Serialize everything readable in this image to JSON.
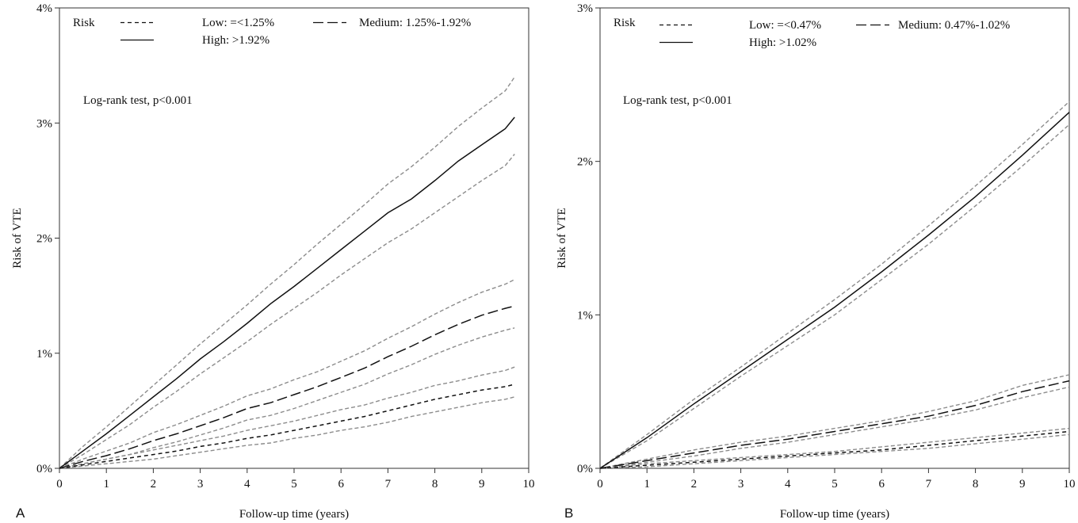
{
  "chart_data": [
    {
      "type": "line",
      "panel_label": "A",
      "xlabel": "Follow-up time (years)",
      "ylabel": "Risk of VTE",
      "xlim": [
        0,
        10
      ],
      "ylim": [
        0,
        4
      ],
      "x_ticks": [
        0,
        1,
        2,
        3,
        4,
        5,
        6,
        7,
        8,
        9,
        10
      ],
      "y_ticks": [
        {
          "value": 0,
          "label": "0%"
        },
        {
          "value": 1,
          "label": "1%"
        },
        {
          "value": 2,
          "label": "2%"
        },
        {
          "value": 3,
          "label": "3%"
        },
        {
          "value": 4,
          "label": "4%"
        }
      ],
      "grid": false,
      "annotation": "Log-rank test, p<0.001",
      "legend": {
        "title": "Risk",
        "placement": "top",
        "entries": [
          {
            "label": "Low: =<1.25%",
            "style": "short-dash"
          },
          {
            "label": "Medium: 1.25%-1.92%",
            "style": "long-dash"
          },
          {
            "label": "High:   >1.92%",
            "style": "solid"
          }
        ]
      },
      "series": [
        {
          "name": "High",
          "style": "solid",
          "x": [
            0,
            0.5,
            1,
            1.5,
            2,
            2.5,
            3,
            3.5,
            4,
            4.5,
            5,
            5.5,
            6,
            6.5,
            7,
            7.5,
            8,
            8.5,
            9,
            9.5,
            9.7
          ],
          "y": [
            0,
            0.15,
            0.3,
            0.46,
            0.62,
            0.78,
            0.95,
            1.1,
            1.26,
            1.43,
            1.58,
            1.74,
            1.9,
            2.06,
            2.22,
            2.34,
            2.5,
            2.67,
            2.81,
            2.95,
            3.05
          ],
          "ci_lower": [
            0,
            0.12,
            0.25,
            0.38,
            0.53,
            0.67,
            0.82,
            0.96,
            1.1,
            1.25,
            1.39,
            1.53,
            1.68,
            1.82,
            1.96,
            2.08,
            2.22,
            2.36,
            2.5,
            2.63,
            2.73
          ],
          "ci_upper": [
            0,
            0.19,
            0.36,
            0.54,
            0.72,
            0.9,
            1.08,
            1.25,
            1.42,
            1.6,
            1.77,
            1.95,
            2.12,
            2.29,
            2.47,
            2.62,
            2.79,
            2.97,
            3.13,
            3.28,
            3.4
          ]
        },
        {
          "name": "Medium",
          "style": "long-dash",
          "x": [
            0,
            0.5,
            1,
            1.5,
            2,
            2.5,
            3,
            3.5,
            4,
            4.5,
            5,
            5.5,
            6,
            6.5,
            7,
            7.5,
            8,
            8.5,
            9,
            9.5,
            9.7
          ],
          "y": [
            0,
            0.06,
            0.11,
            0.17,
            0.24,
            0.3,
            0.37,
            0.44,
            0.52,
            0.57,
            0.64,
            0.71,
            0.79,
            0.87,
            0.97,
            1.06,
            1.16,
            1.25,
            1.33,
            1.39,
            1.41
          ],
          "ci_lower": [
            0,
            0.04,
            0.08,
            0.12,
            0.18,
            0.23,
            0.29,
            0.35,
            0.42,
            0.46,
            0.52,
            0.59,
            0.66,
            0.73,
            0.82,
            0.9,
            0.99,
            1.07,
            1.14,
            1.2,
            1.22
          ],
          "ci_upper": [
            0,
            0.08,
            0.15,
            0.22,
            0.31,
            0.38,
            0.46,
            0.54,
            0.63,
            0.69,
            0.77,
            0.84,
            0.93,
            1.02,
            1.13,
            1.23,
            1.34,
            1.44,
            1.53,
            1.6,
            1.64
          ]
        },
        {
          "name": "Low",
          "style": "short-dash",
          "x": [
            0,
            0.5,
            1,
            1.5,
            2,
            2.5,
            3,
            3.5,
            4,
            4.5,
            5,
            5.5,
            6,
            6.5,
            7,
            7.5,
            8,
            8.5,
            9,
            9.5,
            9.7
          ],
          "y": [
            0,
            0.03,
            0.06,
            0.09,
            0.12,
            0.15,
            0.19,
            0.22,
            0.26,
            0.29,
            0.33,
            0.37,
            0.41,
            0.45,
            0.5,
            0.55,
            0.6,
            0.64,
            0.68,
            0.71,
            0.73
          ],
          "ci_lower": [
            0,
            0.02,
            0.04,
            0.06,
            0.08,
            0.11,
            0.14,
            0.17,
            0.2,
            0.22,
            0.26,
            0.29,
            0.33,
            0.36,
            0.4,
            0.45,
            0.49,
            0.53,
            0.57,
            0.6,
            0.62
          ],
          "ci_upper": [
            0,
            0.04,
            0.08,
            0.12,
            0.16,
            0.2,
            0.24,
            0.28,
            0.33,
            0.37,
            0.41,
            0.46,
            0.51,
            0.55,
            0.61,
            0.66,
            0.72,
            0.76,
            0.81,
            0.85,
            0.88
          ]
        }
      ]
    },
    {
      "type": "line",
      "panel_label": "B",
      "xlabel": "Follow-up time (years)",
      "ylabel": "Risk of VTE",
      "xlim": [
        0,
        10
      ],
      "ylim": [
        0,
        3
      ],
      "x_ticks": [
        0,
        1,
        2,
        3,
        4,
        5,
        6,
        7,
        8,
        9,
        10
      ],
      "y_ticks": [
        {
          "value": 0,
          "label": "0%"
        },
        {
          "value": 1,
          "label": "1%"
        },
        {
          "value": 2,
          "label": "2%"
        },
        {
          "value": 3,
          "label": "3%"
        }
      ],
      "grid": false,
      "annotation": "Log-rank test, p<0.001",
      "legend": {
        "title": "Risk",
        "placement": "top",
        "entries": [
          {
            "label": "Low: =<0.47%",
            "style": "short-dash"
          },
          {
            "label": "Medium: 0.47%-1.02%",
            "style": "long-dash"
          },
          {
            "label": "High:   >1.02%",
            "style": "solid"
          }
        ]
      },
      "series": [
        {
          "name": "High",
          "style": "solid",
          "x": [
            0,
            1,
            2,
            3,
            4,
            5,
            6,
            7,
            8,
            9,
            10
          ],
          "y": [
            0,
            0.2,
            0.42,
            0.63,
            0.84,
            1.05,
            1.28,
            1.52,
            1.77,
            2.04,
            2.32
          ],
          "ci_lower": [
            0,
            0.18,
            0.39,
            0.6,
            0.8,
            1.0,
            1.23,
            1.46,
            1.71,
            1.97,
            2.24
          ],
          "ci_upper": [
            0,
            0.22,
            0.45,
            0.66,
            0.88,
            1.1,
            1.33,
            1.58,
            1.84,
            2.11,
            2.39
          ]
        },
        {
          "name": "Medium",
          "style": "long-dash",
          "x": [
            0,
            1,
            2,
            3,
            4,
            5,
            6,
            7,
            8,
            9,
            10
          ],
          "y": [
            0,
            0.05,
            0.1,
            0.15,
            0.19,
            0.24,
            0.29,
            0.34,
            0.41,
            0.5,
            0.57
          ],
          "ci_lower": [
            0,
            0.04,
            0.08,
            0.13,
            0.17,
            0.22,
            0.27,
            0.32,
            0.38,
            0.46,
            0.53
          ],
          "ci_upper": [
            0,
            0.06,
            0.12,
            0.17,
            0.21,
            0.26,
            0.31,
            0.37,
            0.44,
            0.54,
            0.61
          ]
        },
        {
          "name": "Low",
          "style": "short-dash",
          "x": [
            0,
            1,
            2,
            3,
            4,
            5,
            6,
            7,
            8,
            9,
            10
          ],
          "y": [
            0,
            0.02,
            0.04,
            0.06,
            0.08,
            0.1,
            0.12,
            0.15,
            0.18,
            0.21,
            0.24
          ],
          "ci_lower": [
            0,
            0.01,
            0.03,
            0.05,
            0.07,
            0.09,
            0.11,
            0.13,
            0.16,
            0.19,
            0.22
          ],
          "ci_upper": [
            0,
            0.03,
            0.05,
            0.07,
            0.09,
            0.11,
            0.14,
            0.17,
            0.2,
            0.23,
            0.26
          ]
        }
      ]
    }
  ]
}
